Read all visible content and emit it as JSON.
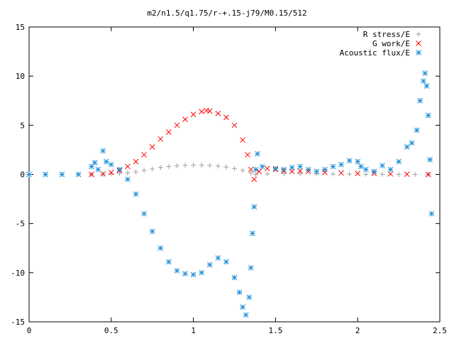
{
  "chart_data": {
    "type": "scatter",
    "title": "m2/n1.5/q1.75/r-+.15-j79/M0.15/512",
    "xlabel": "",
    "ylabel": "",
    "xlim": [
      0,
      2.5
    ],
    "ylim": [
      -15,
      15
    ],
    "grid": false,
    "legend_position": "top-right",
    "x_ticks": [
      {
        "value": 0,
        "label": "0"
      },
      {
        "value": 0.5,
        "label": "0.5"
      },
      {
        "value": 1,
        "label": "1"
      },
      {
        "value": 1.5,
        "label": "1.5"
      },
      {
        "value": 2,
        "label": "2"
      },
      {
        "value": 2.5,
        "label": "2.5"
      }
    ],
    "y_ticks": [
      {
        "value": -15,
        "label": "-15"
      },
      {
        "value": -10,
        "label": "-10"
      },
      {
        "value": -5,
        "label": "-5"
      },
      {
        "value": 0,
        "label": "0"
      },
      {
        "value": 5,
        "label": "5"
      },
      {
        "value": 10,
        "label": "10"
      },
      {
        "value": 15,
        "label": "15"
      }
    ],
    "series": [
      {
        "name": "R stress/E",
        "marker": "plus",
        "color": "#a0a0a0",
        "points": [
          [
            0.38,
            0.0
          ],
          [
            0.45,
            0.02
          ],
          [
            0.5,
            0.05
          ],
          [
            0.55,
            0.1
          ],
          [
            0.6,
            0.15
          ],
          [
            0.65,
            0.25
          ],
          [
            0.7,
            0.4
          ],
          [
            0.75,
            0.55
          ],
          [
            0.8,
            0.7
          ],
          [
            0.85,
            0.8
          ],
          [
            0.9,
            0.88
          ],
          [
            0.95,
            0.93
          ],
          [
            1.0,
            0.95
          ],
          [
            1.05,
            0.95
          ],
          [
            1.1,
            0.92
          ],
          [
            1.15,
            0.85
          ],
          [
            1.2,
            0.75
          ],
          [
            1.25,
            0.6
          ],
          [
            1.3,
            0.4
          ],
          [
            1.35,
            0.15
          ],
          [
            1.38,
            0.0
          ],
          [
            1.45,
            0.05
          ],
          [
            1.55,
            0.08
          ],
          [
            1.65,
            0.06
          ],
          [
            1.75,
            0.05
          ],
          [
            1.85,
            0.04
          ],
          [
            1.95,
            0.03
          ],
          [
            2.05,
            0.02
          ],
          [
            2.15,
            0.01
          ],
          [
            2.25,
            0.0
          ],
          [
            2.35,
            0.0
          ],
          [
            2.43,
            0.0
          ]
        ]
      },
      {
        "name": "G work/E",
        "marker": "cross",
        "color": "#ff0000",
        "points": [
          [
            0.38,
            0.0
          ],
          [
            0.45,
            0.05
          ],
          [
            0.5,
            0.2
          ],
          [
            0.55,
            0.4
          ],
          [
            0.6,
            0.8
          ],
          [
            0.65,
            1.3
          ],
          [
            0.7,
            2.0
          ],
          [
            0.75,
            2.8
          ],
          [
            0.8,
            3.6
          ],
          [
            0.85,
            4.3
          ],
          [
            0.9,
            5.0
          ],
          [
            0.95,
            5.6
          ],
          [
            1.0,
            6.1
          ],
          [
            1.05,
            6.4
          ],
          [
            1.08,
            6.5
          ],
          [
            1.1,
            6.45
          ],
          [
            1.15,
            6.2
          ],
          [
            1.2,
            5.8
          ],
          [
            1.25,
            5.0
          ],
          [
            1.3,
            3.5
          ],
          [
            1.33,
            2.0
          ],
          [
            1.35,
            0.5
          ],
          [
            1.37,
            -0.5
          ],
          [
            1.4,
            0.3
          ],
          [
            1.45,
            0.6
          ],
          [
            1.5,
            0.5
          ],
          [
            1.55,
            0.35
          ],
          [
            1.6,
            0.3
          ],
          [
            1.65,
            0.35
          ],
          [
            1.7,
            0.3
          ],
          [
            1.8,
            0.2
          ],
          [
            1.9,
            0.15
          ],
          [
            2.0,
            0.1
          ],
          [
            2.1,
            0.1
          ],
          [
            2.2,
            0.05
          ],
          [
            2.3,
            0.02
          ],
          [
            2.43,
            0.0
          ]
        ]
      },
      {
        "name": "Acoustic flux/E",
        "marker": "star",
        "color": "#1e90d8",
        "points": [
          [
            0.0,
            0.0
          ],
          [
            0.1,
            0.0
          ],
          [
            0.2,
            0.0
          ],
          [
            0.3,
            0.0
          ],
          [
            0.38,
            0.8
          ],
          [
            0.4,
            1.2
          ],
          [
            0.42,
            0.5
          ],
          [
            0.45,
            2.4
          ],
          [
            0.47,
            1.3
          ],
          [
            0.5,
            1.0
          ],
          [
            0.55,
            0.5
          ],
          [
            0.6,
            -0.5
          ],
          [
            0.65,
            -2.0
          ],
          [
            0.7,
            -4.0
          ],
          [
            0.75,
            -5.8
          ],
          [
            0.8,
            -7.5
          ],
          [
            0.85,
            -8.9
          ],
          [
            0.9,
            -9.8
          ],
          [
            0.95,
            -10.1
          ],
          [
            1.0,
            -10.2
          ],
          [
            1.05,
            -10.0
          ],
          [
            1.1,
            -9.2
          ],
          [
            1.15,
            -8.5
          ],
          [
            1.2,
            -8.9
          ],
          [
            1.25,
            -10.5
          ],
          [
            1.28,
            -12.0
          ],
          [
            1.3,
            -13.5
          ],
          [
            1.32,
            -14.3
          ],
          [
            1.34,
            -12.5
          ],
          [
            1.35,
            -9.5
          ],
          [
            1.36,
            -6.0
          ],
          [
            1.37,
            -3.3
          ],
          [
            1.38,
            0.5
          ],
          [
            1.39,
            2.1
          ],
          [
            1.42,
            0.8
          ],
          [
            1.5,
            0.6
          ],
          [
            1.55,
            0.5
          ],
          [
            1.6,
            0.7
          ],
          [
            1.65,
            0.8
          ],
          [
            1.7,
            0.5
          ],
          [
            1.75,
            0.3
          ],
          [
            1.8,
            0.5
          ],
          [
            1.85,
            0.8
          ],
          [
            1.9,
            1.0
          ],
          [
            1.95,
            1.4
          ],
          [
            2.0,
            1.3
          ],
          [
            2.02,
            0.8
          ],
          [
            2.05,
            0.5
          ],
          [
            2.1,
            0.3
          ],
          [
            2.15,
            0.9
          ],
          [
            2.2,
            0.5
          ],
          [
            2.25,
            1.3
          ],
          [
            2.3,
            2.8
          ],
          [
            2.33,
            3.2
          ],
          [
            2.36,
            4.5
          ],
          [
            2.38,
            7.5
          ],
          [
            2.4,
            9.5
          ],
          [
            2.41,
            10.3
          ],
          [
            2.42,
            9.0
          ],
          [
            2.43,
            6.0
          ],
          [
            2.44,
            1.5
          ],
          [
            2.45,
            -4.0
          ]
        ]
      }
    ]
  }
}
